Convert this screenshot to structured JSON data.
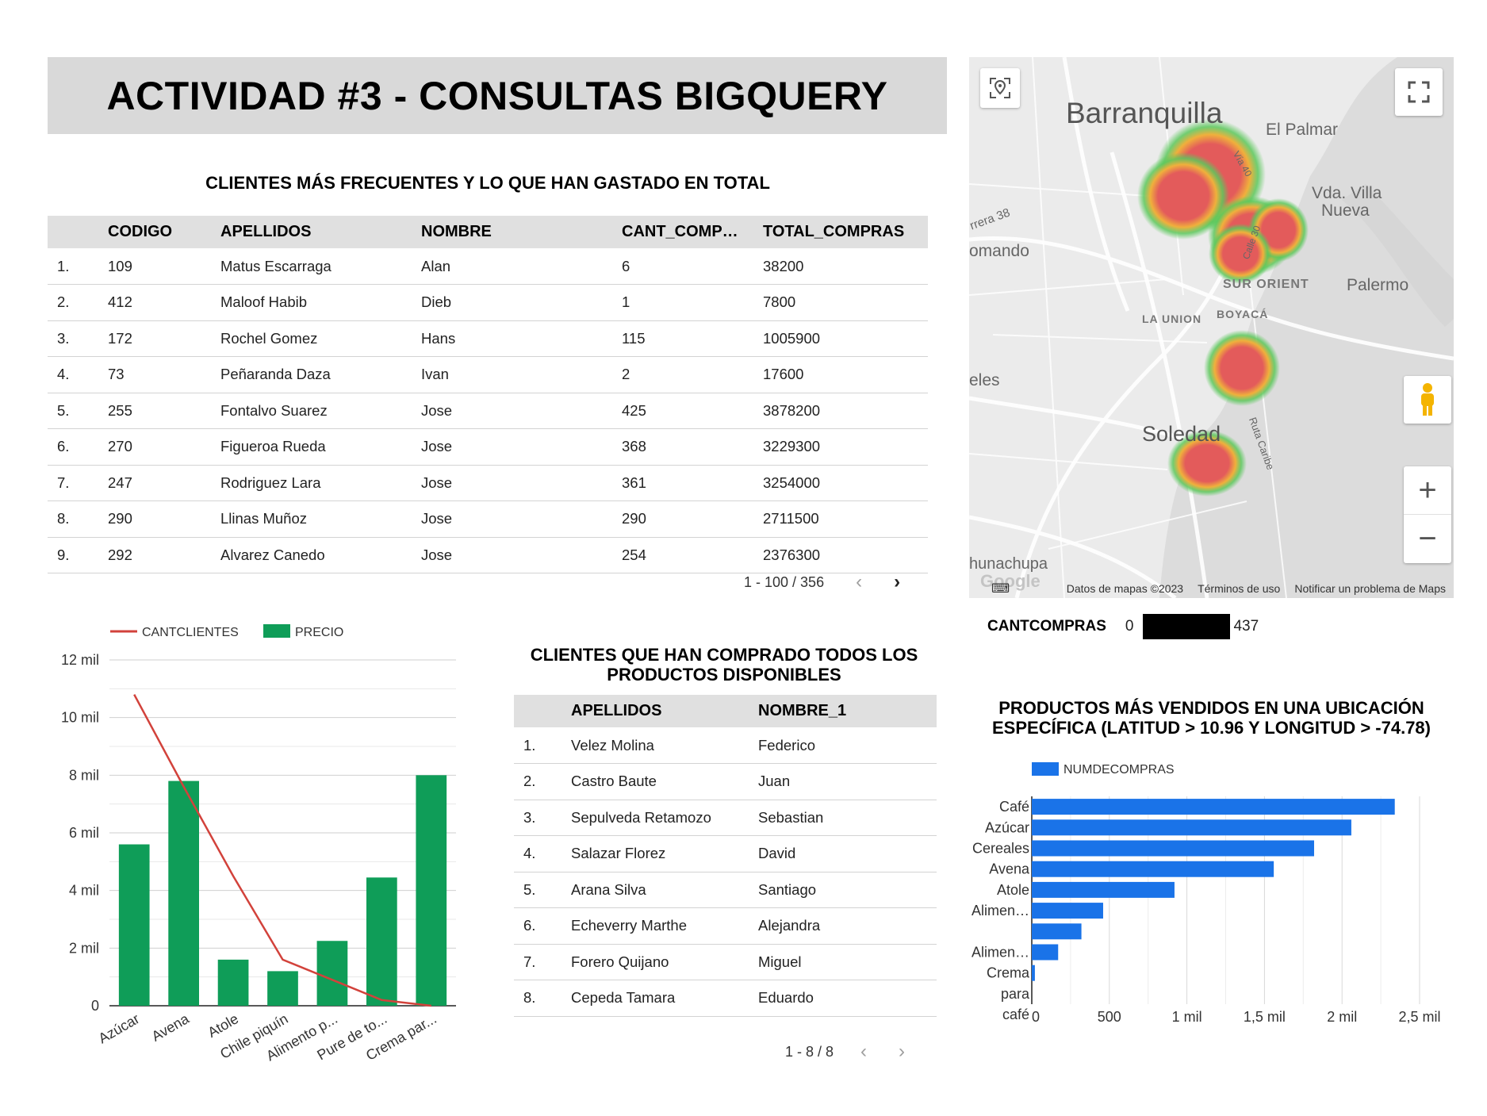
{
  "page_title": "ACTIVIDAD #3 - CONSULTAS BIGQUERY",
  "frequent_clients": {
    "title": "CLIENTES MÁS FRECUENTES Y LO QUE HAN GASTADO EN TOTAL",
    "columns": [
      "CODIGO",
      "APELLIDOS",
      "NOMBRE",
      "CANT_COMP…",
      "TOTAL_COMPRAS"
    ],
    "rows": [
      {
        "idx": "1.",
        "codigo": "109",
        "apellidos": "Matus Escarraga",
        "nombre": "Alan",
        "cant": "6",
        "total": "38200"
      },
      {
        "idx": "2.",
        "codigo": "412",
        "apellidos": "Maloof Habib",
        "nombre": "Dieb",
        "cant": "1",
        "total": "7800"
      },
      {
        "idx": "3.",
        "codigo": "172",
        "apellidos": "Rochel Gomez",
        "nombre": "Hans",
        "cant": "115",
        "total": "1005900"
      },
      {
        "idx": "4.",
        "codigo": "73",
        "apellidos": "Peñaranda Daza",
        "nombre": "Ivan",
        "cant": "2",
        "total": "17600"
      },
      {
        "idx": "5.",
        "codigo": "255",
        "apellidos": "Fontalvo Suarez",
        "nombre": "Jose",
        "cant": "425",
        "total": "3878200"
      },
      {
        "idx": "6.",
        "codigo": "270",
        "apellidos": "Figueroa Rueda",
        "nombre": "Jose",
        "cant": "368",
        "total": "3229300"
      },
      {
        "idx": "7.",
        "codigo": "247",
        "apellidos": "Rodriguez Lara",
        "nombre": "Jose",
        "cant": "361",
        "total": "3254000"
      },
      {
        "idx": "8.",
        "codigo": "290",
        "apellidos": "Llinas Muñoz",
        "nombre": "Jose",
        "cant": "290",
        "total": "2711500"
      },
      {
        "idx": "9.",
        "codigo": "292",
        "apellidos": "Alvarez Canedo",
        "nombre": "Jose",
        "cant": "254",
        "total": "2376300"
      }
    ],
    "pagination": "1 - 100 / 356"
  },
  "all_products_clients": {
    "title_line1": "CLIENTES QUE HAN COMPRADO TODOS LOS",
    "title_line2": "PRODUCTOS DISPONIBLES",
    "columns": [
      "APELLIDOS",
      "NOMBRE_1"
    ],
    "rows": [
      {
        "idx": "1.",
        "apellidos": "Velez Molina",
        "nombre": "Federico"
      },
      {
        "idx": "2.",
        "apellidos": "Castro Baute",
        "nombre": "Juan"
      },
      {
        "idx": "3.",
        "apellidos": "Sepulveda Retamozo",
        "nombre": "Sebastian"
      },
      {
        "idx": "4.",
        "apellidos": "Salazar Florez",
        "nombre": "David"
      },
      {
        "idx": "5.",
        "apellidos": "Arana Silva",
        "nombre": "Santiago"
      },
      {
        "idx": "6.",
        "apellidos": "Echeverry Marthe",
        "nombre": "Alejandra"
      },
      {
        "idx": "7.",
        "apellidos": "Forero Quijano",
        "nombre": "Miguel"
      },
      {
        "idx": "8.",
        "apellidos": "Cepeda Tamara",
        "nombre": "Eduardo"
      }
    ],
    "pagination": "1 - 8 / 8"
  },
  "map": {
    "labels": {
      "barranquilla": "Barranquilla",
      "el_palmar": "El Palmar",
      "villa_nueva_1": "Vda. Villa",
      "villa_nueva_2": "Nueva",
      "comando": "omando",
      "carrera": "rrera 38",
      "sur_orient": "SUR ORIENT",
      "palermo": "Palermo",
      "la_union": "LA UNION",
      "boyaca": "BOYACÁ",
      "eles": "eles",
      "soledad": "Soledad",
      "ruta_caribe": "Ruta Caribe",
      "calle_30": "Calle 30",
      "via_40": "Vía 40",
      "hunapachupa": "hunachupa"
    },
    "footer": {
      "data": "Datos de mapas ©2023",
      "terms": "Términos de uso",
      "report": "Notificar un problema de Maps"
    },
    "google": "Google",
    "colors": {
      "hot": "#e35b5b",
      "warm": "#f0b03c",
      "cool": "#5cc85c"
    }
  },
  "map_legend": {
    "label": "CANTCOMPRAS",
    "min": "0",
    "max": "437"
  },
  "chart_data": [
    {
      "type": "bar",
      "id": "combo-chart",
      "title": "",
      "legend": [
        {
          "name": "CANTCLIENTES",
          "kind": "line",
          "color": "#d2423b"
        },
        {
          "name": "PRECIO",
          "kind": "bar",
          "color": "#0f9d58"
        }
      ],
      "categories": [
        "Azúcar",
        "Avena",
        "Atole",
        "Chile piquín",
        "Alimento p...",
        "Pure de to...",
        "Crema par..."
      ],
      "series": [
        {
          "name": "PRECIO",
          "type": "bar",
          "values": [
            5600,
            7800,
            1600,
            1200,
            2250,
            4450,
            8000
          ]
        },
        {
          "name": "CANTCLIENTES",
          "type": "line",
          "values": [
            10800,
            7600,
            4500,
            1600,
            900,
            200,
            0
          ]
        }
      ],
      "ylim": [
        0,
        12000
      ],
      "yticks": [
        0,
        2000,
        4000,
        6000,
        8000,
        10000,
        12000
      ],
      "ytick_labels": [
        "0",
        "2 mil",
        "4 mil",
        "6 mil",
        "8 mil",
        "10 mil",
        "12 mil"
      ],
      "legend_position": "top-left"
    },
    {
      "type": "bar",
      "id": "hbar-chart",
      "orientation": "horizontal",
      "title": "PRODUCTOS MÁS VENDIDOS EN UNA UBICACIÓN ESPECÍFICA (LATITUD > 10.96 Y LONGITUD > -74.78)",
      "title_line1": "PRODUCTOS MÁS VENDIDOS EN UNA UBICACIÓN",
      "title_line2": "ESPECÍFICA (LATITUD > 10.96 Y LONGITUD > -74.78)",
      "legend": [
        {
          "name": "NUMDECOMPRAS",
          "color": "#1a73e8"
        }
      ],
      "category_labels": [
        "Café",
        "Azúcar",
        "Cereales",
        "Avena",
        "Atole",
        "Alimen…",
        "",
        "Alimen…",
        "Crema",
        "para",
        "café"
      ],
      "categories": [
        "Café",
        "Azúcar",
        "Cereales",
        "Avena",
        "Atole",
        "Alimen…",
        "",
        "Alimen…",
        "Crema para café"
      ],
      "values": [
        2340,
        2060,
        1820,
        1560,
        920,
        460,
        320,
        170,
        20
      ],
      "xlim": [
        0,
        2500
      ],
      "xticks": [
        0,
        500,
        1000,
        1500,
        2000,
        2500
      ],
      "xtick_labels": [
        "0",
        "500",
        "1 mil",
        "1,5 mil",
        "2 mil",
        "2,5 mil"
      ],
      "color": "#1a73e8",
      "legend_position": "top-left"
    }
  ]
}
